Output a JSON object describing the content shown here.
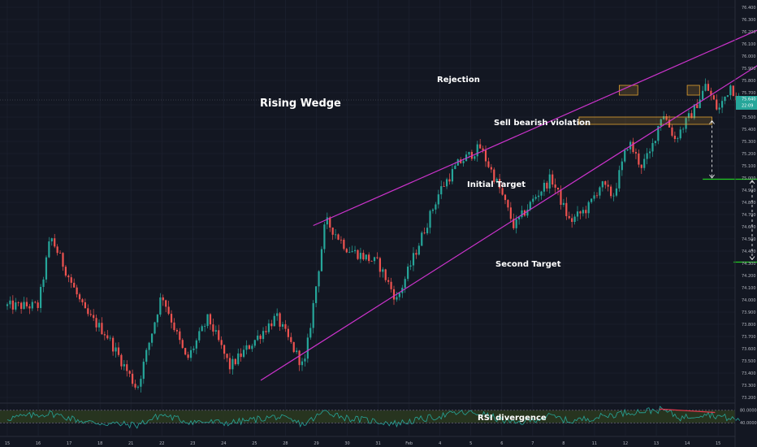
{
  "chart_data": {
    "type": "candlestick",
    "y_axis": {
      "ticks": [
        "76.400",
        "76.300",
        "76.200",
        "76.100",
        "76.000",
        "75.900",
        "75.800",
        "75.700",
        "75.600",
        "75.500",
        "75.400",
        "75.300",
        "75.200",
        "75.100",
        "75.000",
        "74.900",
        "74.800",
        "74.700",
        "74.600",
        "74.500",
        "74.400",
        "74.300",
        "74.200",
        "74.100",
        "74.000",
        "73.900",
        "73.800",
        "73.700",
        "73.600",
        "73.500",
        "73.400",
        "73.300",
        "73.200"
      ],
      "range": [
        73.16,
        76.46
      ],
      "current_price": "75.640",
      "current_time": "22:09"
    },
    "x_axis": {
      "ticks": [
        "15",
        "16",
        "17",
        "18",
        "21",
        "22",
        "23",
        "24",
        "25",
        "28",
        "29",
        "30",
        "31",
        "Feb",
        "4",
        "5",
        "6",
        "7",
        "8",
        "11",
        "12",
        "13",
        "14",
        "15"
      ]
    },
    "price_path": [
      {
        "t": 0,
        "p": 73.95
      },
      {
        "t": 1.0,
        "p": 73.95
      },
      {
        "t": 1.4,
        "p": 74.52
      },
      {
        "t": 2.5,
        "p": 73.9
      },
      {
        "t": 3.2,
        "p": 73.72
      },
      {
        "t": 4.2,
        "p": 73.27
      },
      {
        "t": 5.0,
        "p": 74.05
      },
      {
        "t": 5.8,
        "p": 73.5
      },
      {
        "t": 6.5,
        "p": 73.85
      },
      {
        "t": 7.2,
        "p": 73.45
      },
      {
        "t": 8.7,
        "p": 73.86
      },
      {
        "t": 9.6,
        "p": 73.44
      },
      {
        "t": 10.3,
        "p": 74.65
      },
      {
        "t": 11.0,
        "p": 74.42
      },
      {
        "t": 12.0,
        "p": 74.3
      },
      {
        "t": 12.6,
        "p": 74.0
      },
      {
        "t": 13.3,
        "p": 74.45
      },
      {
        "t": 14.0,
        "p": 74.9
      },
      {
        "t": 14.6,
        "p": 75.12
      },
      {
        "t": 15.3,
        "p": 75.25
      },
      {
        "t": 15.9,
        "p": 74.93
      },
      {
        "t": 16.4,
        "p": 74.6
      },
      {
        "t": 17.1,
        "p": 74.85
      },
      {
        "t": 17.6,
        "p": 75.0
      },
      {
        "t": 18.2,
        "p": 74.64
      },
      {
        "t": 18.8,
        "p": 74.76
      },
      {
        "t": 19.2,
        "p": 74.95
      },
      {
        "t": 19.6,
        "p": 74.85
      },
      {
        "t": 20.1,
        "p": 75.3
      },
      {
        "t": 20.5,
        "p": 75.1
      },
      {
        "t": 20.8,
        "p": 75.2
      },
      {
        "t": 21.2,
        "p": 75.55
      },
      {
        "t": 21.6,
        "p": 75.32
      },
      {
        "t": 22.2,
        "p": 75.55
      },
      {
        "t": 22.6,
        "p": 75.76
      },
      {
        "t": 23.0,
        "p": 75.55
      },
      {
        "t": 23.4,
        "p": 75.76
      },
      {
        "t": 23.7,
        "p": 75.62
      }
    ],
    "trendlines": [
      {
        "name": "wedge-upper",
        "t1": 9.9,
        "p1": 74.61,
        "t2": 25.5,
        "p2": 76.35
      },
      {
        "name": "wedge-lower",
        "t1": 8.2,
        "p1": 73.34,
        "t2": 25.5,
        "p2": 76.12
      }
    ],
    "zones": [
      {
        "name": "rejection-box-left",
        "t1": 19.8,
        "t2": 20.4,
        "p1": 75.68,
        "p2": 75.76
      },
      {
        "name": "rejection-box-right",
        "t1": 22.0,
        "t2": 22.4,
        "p1": 75.68,
        "p2": 75.76
      },
      {
        "name": "violation-zone",
        "t1": 18.5,
        "t2": 22.8,
        "p1": 75.44,
        "p2": 75.5
      }
    ],
    "target_levels": [
      {
        "name": "initial-target",
        "t1": 22.5,
        "t2": 24.5,
        "p": 74.99
      },
      {
        "name": "second-target",
        "t1": 23.5,
        "t2": 24.6,
        "p": 74.31
      }
    ],
    "annotations": {
      "pattern": "Rising Wedge",
      "rejection": "Rejection",
      "violation": "Sell bearish violation",
      "initial_target": "Initial Target",
      "second_target": "Second Target",
      "rsi_divergence": "RSI divergence"
    },
    "rsi": {
      "ticks": [
        "80.0000",
        "40.0000"
      ],
      "path": [
        {
          "t": 0,
          "v": 55
        },
        {
          "t": 1.4,
          "v": 70
        },
        {
          "t": 2.6,
          "v": 42
        },
        {
          "t": 4.2,
          "v": 33
        },
        {
          "t": 5.0,
          "v": 66
        },
        {
          "t": 5.8,
          "v": 45
        },
        {
          "t": 7.2,
          "v": 40
        },
        {
          "t": 8.7,
          "v": 60
        },
        {
          "t": 9.6,
          "v": 35
        },
        {
          "t": 10.3,
          "v": 78
        },
        {
          "t": 11.0,
          "v": 55
        },
        {
          "t": 12.6,
          "v": 38
        },
        {
          "t": 14.6,
          "v": 72
        },
        {
          "t": 15.3,
          "v": 70
        },
        {
          "t": 16.4,
          "v": 38
        },
        {
          "t": 17.6,
          "v": 62
        },
        {
          "t": 18.2,
          "v": 45
        },
        {
          "t": 20.1,
          "v": 74
        },
        {
          "t": 21.2,
          "v": 82
        },
        {
          "t": 21.8,
          "v": 56
        },
        {
          "t": 22.6,
          "v": 70
        },
        {
          "t": 23.7,
          "v": 48
        }
      ],
      "divergence_line": {
        "t1": 21.1,
        "v1": 84,
        "t2": 22.9,
        "v2": 73
      }
    },
    "colors": {
      "background": "#131722",
      "grid": "#1f2433",
      "up": "#26a69a",
      "down": "#ef5350",
      "trendline": "#cc33cc",
      "zone": "#e0a030",
      "target": "#22cc22",
      "rsi_line": "#26a69a",
      "rsi_band": "#2b3a1e",
      "divergence": "#e0364a",
      "price_label": "#26a69a"
    }
  }
}
